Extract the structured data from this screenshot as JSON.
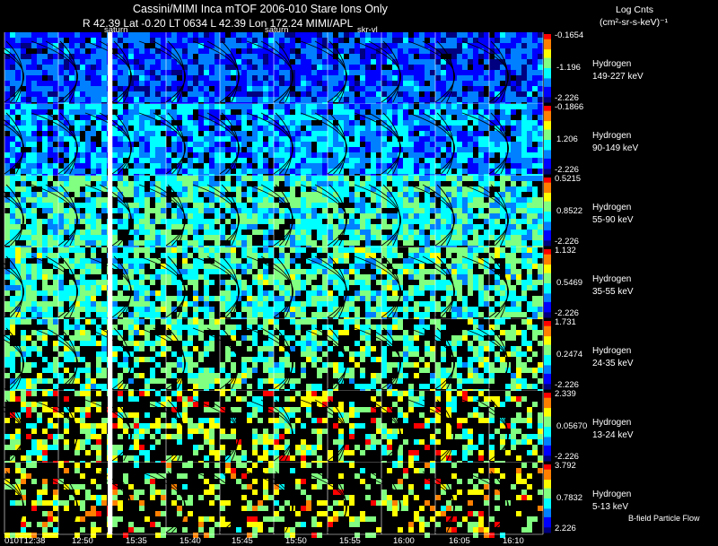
{
  "header": {
    "title": "Cassini/MIMI Inca mTOF  2006-010   Stare   Ions Only",
    "info": "R     42.39 Lat -0.20 LT 0634 L       42.39 Lon       172.24  MIMI/APL",
    "units_line1": "Log Cnts",
    "units_line2": "(cm²-sr-s-keV)⁻¹"
  },
  "chart_data": {
    "type": "heatmap",
    "rows": [
      {
        "species": "Hydrogen",
        "energy": "149-227 keV",
        "scale_top": "-0.1654",
        "scale_mid": "-1.196",
        "scale_bottom": "-2.226"
      },
      {
        "species": "Hydrogen",
        "energy": "90-149 keV",
        "scale_top": "-0.1866",
        "scale_mid": "1.206",
        "scale_bottom": "-2.226"
      },
      {
        "species": "Hydrogen",
        "energy": "55-90 keV",
        "scale_top": "0.5215",
        "scale_mid": "0.8522",
        "scale_bottom": "-2.226"
      },
      {
        "species": "Hydrogen",
        "energy": "35-55 keV",
        "scale_top": "1.132",
        "scale_mid": "0.5469",
        "scale_bottom": "-2.226"
      },
      {
        "species": "Hydrogen",
        "energy": "24-35 keV",
        "scale_top": "1.731",
        "scale_mid": "0.2474",
        "scale_bottom": "-2.226"
      },
      {
        "species": "Hydrogen",
        "energy": "13-24 keV",
        "scale_top": "2.339",
        "scale_mid": "0.05670",
        "scale_bottom": "-2.226"
      },
      {
        "species": "Hydrogen",
        "energy": "5-13 keV",
        "scale_top": "3.792",
        "scale_mid": "0.7832",
        "scale_bottom": "2.226"
      }
    ],
    "times": [
      "010T12:38",
      "12:50",
      "15:35",
      "15:40",
      "15:45",
      "15:50",
      "15:55",
      "16:00",
      "16:05",
      "16:10"
    ],
    "markers": [
      "saturn",
      "saturn",
      "skr-vl"
    ],
    "colorscale": [
      "#000080",
      "#0000ff",
      "#0080ff",
      "#00ffff",
      "#80ff80",
      "#ffff00",
      "#ff8000",
      "#ff0000"
    ]
  },
  "footer": "B-field Particle Flow"
}
